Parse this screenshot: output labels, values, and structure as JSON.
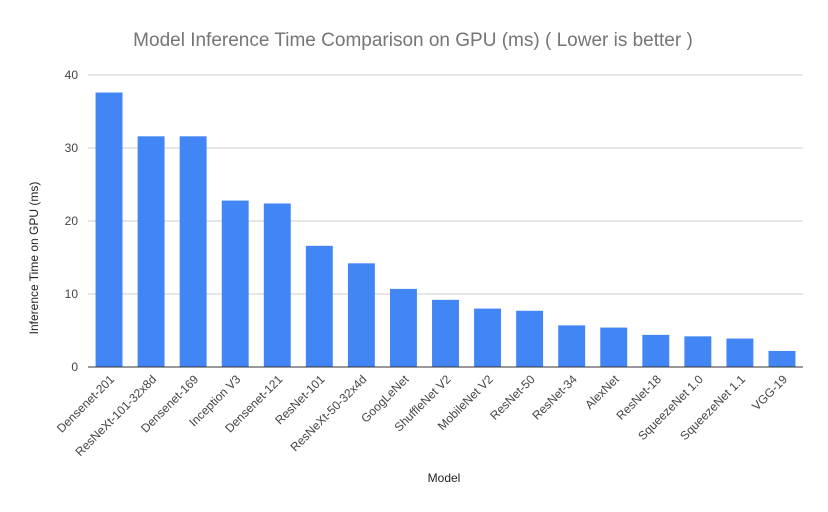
{
  "chart_data": {
    "type": "bar",
    "title": "Model Inference Time Comparison on GPU (ms) ( Lower is better )",
    "xlabel": "Model",
    "ylabel": "Inference Time on GPU (ms)",
    "ylim": [
      0,
      40
    ],
    "yticks": [
      0,
      10,
      20,
      30,
      40
    ],
    "grid": true,
    "categories": [
      "Densenet-201",
      "ResNeXt-101-32x8d",
      "Densenet-169",
      "Inception V3",
      "Densenet-121",
      "ResNet-101",
      "ResNeXt-50-32x4d",
      "GoogLeNet",
      "ShuffleNet V2",
      "MobileNet V2",
      "ResNet-50",
      "ResNet-34",
      "AlexNet",
      "ResNet-18",
      "SqueezeNet 1.0",
      "SqueezeNet 1.1",
      "VGG-19"
    ],
    "values": [
      37.6,
      31.6,
      31.6,
      22.8,
      22.4,
      16.6,
      14.2,
      10.7,
      9.2,
      8.0,
      7.7,
      5.7,
      5.4,
      4.4,
      4.2,
      3.9,
      2.2
    ],
    "bar_color": "#4285f4"
  }
}
